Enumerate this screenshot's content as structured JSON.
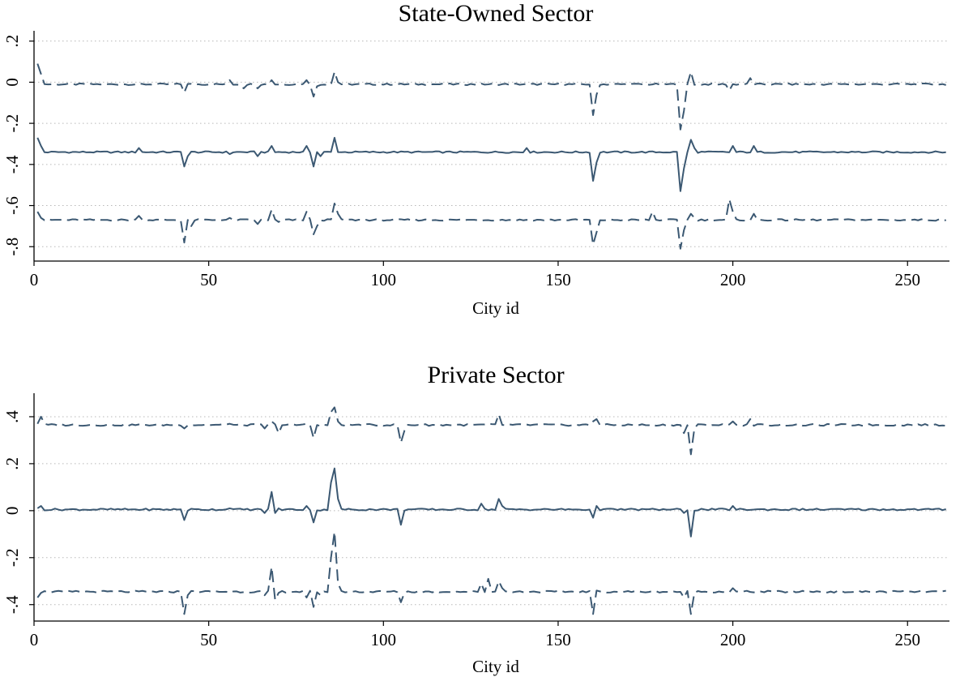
{
  "chart_data": [
    {
      "type": "line",
      "title": "State-Owned Sector",
      "xlabel": "City id",
      "ylabel": "",
      "xlim": [
        0,
        262
      ],
      "ylim": [
        -0.87,
        0.25
      ],
      "xticks": [
        0,
        50,
        100,
        150,
        200,
        250
      ],
      "xtick_labels": [
        "0",
        "50",
        "100",
        "150",
        "200",
        "250"
      ],
      "yticks": [
        0.2,
        0,
        -0.2,
        -0.4,
        -0.6,
        -0.8
      ],
      "ytick_labels": [
        ".2",
        "0",
        "-.2",
        "-.4",
        "-.6",
        "-.8"
      ],
      "grid": "horizontal-dotted",
      "legend": "none",
      "color": "#3b5872",
      "baselines": {
        "upper": -0.01,
        "center": -0.34,
        "lower": -0.67
      },
      "series": [
        {
          "style": "dashed",
          "role": "upper",
          "spikes": [
            [
              1,
              0.09
            ],
            [
              2,
              0.04
            ],
            [
              43,
              -0.05
            ],
            [
              56,
              0.01
            ],
            [
              60,
              -0.03
            ],
            [
              64,
              -0.03
            ],
            [
              68,
              0.01
            ],
            [
              78,
              0.01
            ],
            [
              80,
              -0.07
            ],
            [
              81,
              -0.02
            ],
            [
              86,
              0.05
            ],
            [
              87,
              0.0
            ],
            [
              160,
              -0.16
            ],
            [
              161,
              -0.06
            ],
            [
              185,
              -0.23
            ],
            [
              186,
              -0.14
            ],
            [
              188,
              0.05
            ],
            [
              199,
              -0.04
            ],
            [
              205,
              0.02
            ]
          ]
        },
        {
          "style": "solid",
          "role": "center",
          "spikes": [
            [
              1,
              -0.27
            ],
            [
              2,
              -0.31
            ],
            [
              30,
              -0.32
            ],
            [
              43,
              -0.41
            ],
            [
              44,
              -0.36
            ],
            [
              56,
              -0.35
            ],
            [
              64,
              -0.36
            ],
            [
              68,
              -0.31
            ],
            [
              78,
              -0.31
            ],
            [
              80,
              -0.41
            ],
            [
              82,
              -0.36
            ],
            [
              86,
              -0.27
            ],
            [
              87,
              -0.34
            ],
            [
              141,
              -0.32
            ],
            [
              160,
              -0.48
            ],
            [
              161,
              -0.39
            ],
            [
              185,
              -0.53
            ],
            [
              186,
              -0.42
            ],
            [
              188,
              -0.28
            ],
            [
              189,
              -0.32
            ],
            [
              200,
              -0.31
            ],
            [
              206,
              -0.31
            ]
          ]
        },
        {
          "style": "dashed",
          "role": "lower",
          "spikes": [
            [
              1,
              -0.63
            ],
            [
              2,
              -0.66
            ],
            [
              30,
              -0.65
            ],
            [
              43,
              -0.78
            ],
            [
              44,
              -0.67
            ],
            [
              45,
              -0.7
            ],
            [
              56,
              -0.66
            ],
            [
              64,
              -0.69
            ],
            [
              68,
              -0.62
            ],
            [
              70,
              -0.68
            ],
            [
              78,
              -0.63
            ],
            [
              80,
              -0.74
            ],
            [
              81,
              -0.7
            ],
            [
              86,
              -0.59
            ],
            [
              87,
              -0.64
            ],
            [
              160,
              -0.79
            ],
            [
              161,
              -0.73
            ],
            [
              177,
              -0.63
            ],
            [
              185,
              -0.81
            ],
            [
              186,
              -0.72
            ],
            [
              188,
              -0.64
            ],
            [
              189,
              -0.66
            ],
            [
              199,
              -0.57
            ],
            [
              200,
              -0.63
            ],
            [
              206,
              -0.64
            ]
          ]
        }
      ]
    },
    {
      "type": "line",
      "title": "Private Sector",
      "xlabel": "City id",
      "ylabel": "",
      "xlim": [
        0,
        262
      ],
      "ylim": [
        -0.47,
        0.5
      ],
      "xticks": [
        0,
        50,
        100,
        150,
        200,
        250
      ],
      "xtick_labels": [
        "0",
        "50",
        "100",
        "150",
        "200",
        "250"
      ],
      "yticks": [
        0.4,
        0.2,
        0,
        -0.2,
        -0.4
      ],
      "ytick_labels": [
        ".4",
        ".2",
        "0",
        "-.2",
        "-.4"
      ],
      "grid": "horizontal-dotted",
      "legend": "none",
      "color": "#3b5872",
      "baselines": {
        "upper": 0.365,
        "center": 0.005,
        "lower": -0.345
      },
      "series": [
        {
          "style": "dashed",
          "role": "upper",
          "spikes": [
            [
              1,
              0.37
            ],
            [
              2,
              0.4
            ],
            [
              3,
              0.37
            ],
            [
              43,
              0.35
            ],
            [
              56,
              0.37
            ],
            [
              66,
              0.35
            ],
            [
              68,
              0.38
            ],
            [
              70,
              0.33
            ],
            [
              78,
              0.37
            ],
            [
              80,
              0.31
            ],
            [
              82,
              0.36
            ],
            [
              85,
              0.42
            ],
            [
              86,
              0.44
            ],
            [
              87,
              0.38
            ],
            [
              105,
              0.29
            ],
            [
              106,
              0.34
            ],
            [
              130,
              0.37
            ],
            [
              133,
              0.41
            ],
            [
              160,
              0.38
            ],
            [
              161,
              0.39
            ],
            [
              186,
              0.33
            ],
            [
              188,
              0.24
            ],
            [
              189,
              0.35
            ],
            [
              200,
              0.38
            ],
            [
              205,
              0.39
            ]
          ]
        },
        {
          "style": "solid",
          "role": "center",
          "spikes": [
            [
              1,
              0.01
            ],
            [
              2,
              0.02
            ],
            [
              43,
              -0.04
            ],
            [
              44,
              0.0
            ],
            [
              56,
              0.01
            ],
            [
              66,
              -0.01
            ],
            [
              68,
              0.08
            ],
            [
              69,
              -0.01
            ],
            [
              70,
              0.01
            ],
            [
              78,
              0.02
            ],
            [
              80,
              -0.05
            ],
            [
              82,
              0.0
            ],
            [
              85,
              0.12
            ],
            [
              86,
              0.18
            ],
            [
              87,
              0.05
            ],
            [
              105,
              -0.06
            ],
            [
              106,
              0.0
            ],
            [
              128,
              0.03
            ],
            [
              133,
              0.05
            ],
            [
              134,
              0.02
            ],
            [
              160,
              -0.03
            ],
            [
              161,
              0.02
            ],
            [
              186,
              -0.01
            ],
            [
              188,
              -0.11
            ],
            [
              189,
              0.0
            ],
            [
              200,
              0.02
            ]
          ]
        },
        {
          "style": "dashed",
          "role": "lower",
          "spikes": [
            [
              1,
              -0.37
            ],
            [
              2,
              -0.35
            ],
            [
              43,
              -0.44
            ],
            [
              44,
              -0.36
            ],
            [
              56,
              -0.35
            ],
            [
              66,
              -0.36
            ],
            [
              68,
              -0.24
            ],
            [
              69,
              -0.38
            ],
            [
              70,
              -0.35
            ],
            [
              78,
              -0.37
            ],
            [
              80,
              -0.41
            ],
            [
              82,
              -0.36
            ],
            [
              85,
              -0.2
            ],
            [
              86,
              -0.09
            ],
            [
              87,
              -0.31
            ],
            [
              105,
              -0.39
            ],
            [
              106,
              -0.35
            ],
            [
              128,
              -0.31
            ],
            [
              130,
              -0.29
            ],
            [
              133,
              -0.3
            ],
            [
              134,
              -0.33
            ],
            [
              160,
              -0.44
            ],
            [
              161,
              -0.34
            ],
            [
              186,
              -0.37
            ],
            [
              188,
              -0.44
            ],
            [
              189,
              -0.35
            ],
            [
              200,
              -0.33
            ]
          ]
        }
      ]
    }
  ]
}
